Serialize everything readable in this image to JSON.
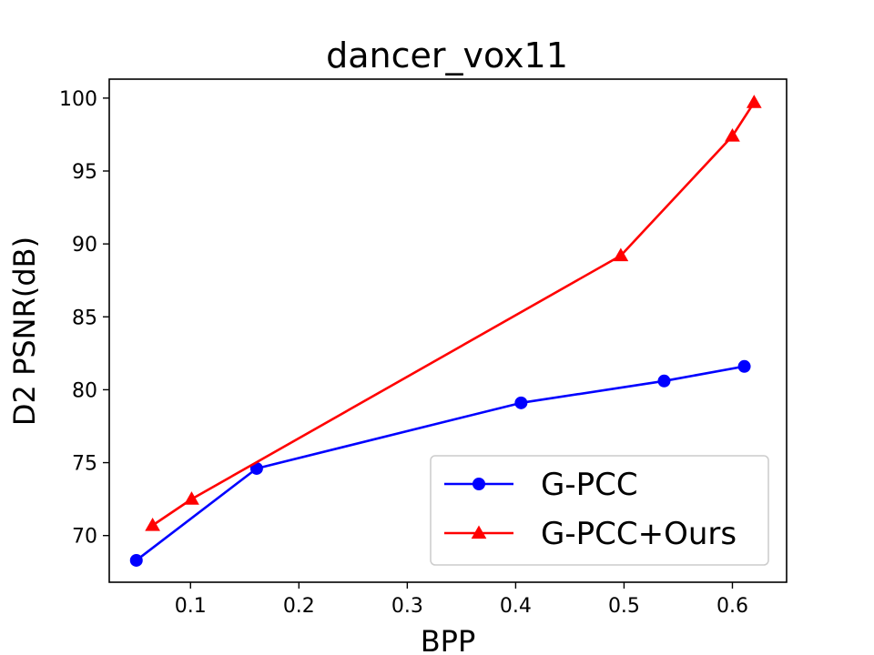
{
  "chart_data": {
    "type": "line",
    "title": "dancer_vox11",
    "xlabel": "BPP",
    "ylabel": "D2 PSNR(dB)",
    "xlim": [
      0.025,
      0.65
    ],
    "ylim": [
      66.8,
      101.3
    ],
    "xticks": [
      0.1,
      0.2,
      0.3,
      0.4,
      0.5,
      0.6
    ],
    "xtick_labels": [
      "0.1",
      "0.2",
      "0.3",
      "0.4",
      "0.5",
      "0.6"
    ],
    "yticks": [
      70,
      75,
      80,
      85,
      90,
      95,
      100
    ],
    "ytick_labels": [
      "70",
      "75",
      "80",
      "85",
      "90",
      "95",
      "100"
    ],
    "grid": false,
    "legend_position": "bottom-right",
    "series": [
      {
        "name": "G-PCC",
        "color": "#0000ff",
        "marker": "circle",
        "x": [
          0.05,
          0.161,
          0.405,
          0.537,
          0.611
        ],
        "y": [
          68.3,
          74.6,
          79.1,
          80.6,
          81.6
        ]
      },
      {
        "name": "G-PCC+Ours",
        "color": "#ff0000",
        "marker": "triangle",
        "x": [
          0.065,
          0.101,
          0.497,
          0.6,
          0.62
        ],
        "y": [
          70.7,
          72.5,
          89.2,
          97.4,
          99.7
        ]
      }
    ]
  }
}
